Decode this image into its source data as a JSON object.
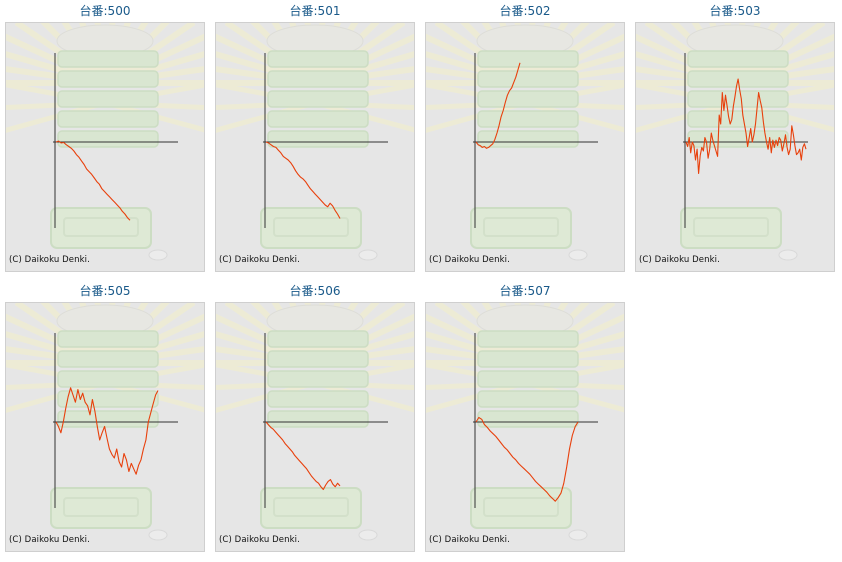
{
  "copyright": "(C) Daikoku Denki.",
  "colors": {
    "line": "#e8400c",
    "axis": "#333333",
    "title": "#1a5a8a",
    "panel": "#e6e6e6"
  },
  "chart_data": [
    {
      "type": "line",
      "title": "台番:500",
      "values": [
        0,
        1,
        -1,
        -0.5,
        -3,
        -5,
        -7,
        -10,
        -14,
        -17,
        -21,
        -25,
        -30,
        -33,
        -36,
        -40,
        -44,
        -47,
        -52,
        -55,
        -58,
        -61,
        -64,
        -67,
        -70,
        -73,
        -77,
        -80,
        -84,
        -87
      ]
    },
    {
      "type": "line",
      "title": "台番:501",
      "values": [
        0,
        -1,
        -3,
        -5,
        -6,
        -9,
        -12,
        -16,
        -18,
        -20,
        -23,
        -27,
        -32,
        -36,
        -39,
        -41,
        -44,
        -48,
        -52,
        -55,
        -58,
        -61,
        -64,
        -67,
        -70,
        -72,
        -68,
        -71,
        -76,
        -80,
        -85
      ]
    },
    {
      "type": "line",
      "title": "台番:502",
      "values": [
        0,
        -3,
        -4,
        -6,
        -5,
        -7,
        -6,
        -4,
        -2,
        3,
        10,
        18,
        28,
        35,
        44,
        52,
        57,
        60,
        66,
        72,
        80,
        88
      ]
    },
    {
      "type": "line",
      "title": "台番:503",
      "values": [
        0,
        -5,
        5,
        -12,
        0,
        -4,
        -20,
        -8,
        -35,
        -15,
        -6,
        -10,
        5,
        0,
        -18,
        -8,
        10,
        2,
        -4,
        -10,
        -16,
        30,
        20,
        55,
        35,
        52,
        40,
        28,
        20,
        25,
        40,
        50,
        62,
        70,
        58,
        48,
        30,
        20,
        10,
        -5,
        5,
        15,
        0,
        8,
        20,
        38,
        55,
        46,
        38,
        22,
        10,
        0,
        -8,
        5,
        -12,
        2,
        -6,
        2,
        -4,
        5,
        2,
        -10,
        -2,
        8,
        -6,
        -14,
        -8,
        18,
        8,
        -4,
        -14,
        -12,
        -8,
        -20,
        -6,
        -2,
        -8
      ]
    },
    {
      "type": "line",
      "title": "台番:505",
      "values": [
        0,
        -5,
        -12,
        0,
        15,
        28,
        38,
        30,
        22,
        36,
        25,
        32,
        22,
        18,
        8,
        25,
        12,
        -5,
        -20,
        -12,
        -5,
        -18,
        -30,
        -36,
        -40,
        -30,
        -44,
        -50,
        -35,
        -42,
        -55,
        -46,
        -52,
        -58,
        -48,
        -42,
        -30,
        -20,
        0,
        10,
        20,
        30,
        35
      ]
    },
    {
      "type": "line",
      "title": "台番:506",
      "values": [
        0,
        -3,
        -6,
        -8,
        -11,
        -14,
        -17,
        -20,
        -24,
        -27,
        -30,
        -33,
        -37,
        -40,
        -43,
        -46,
        -49,
        -52,
        -56,
        -60,
        -63,
        -66,
        -68,
        -72,
        -75,
        -70,
        -66,
        -64,
        -69,
        -72,
        -68,
        -71
      ]
    },
    {
      "type": "line",
      "title": "台番:507",
      "values": [
        0,
        5,
        3,
        -3,
        -6,
        -10,
        -13,
        -16,
        -20,
        -24,
        -28,
        -31,
        -35,
        -39,
        -42,
        -46,
        -49,
        -52,
        -55,
        -58,
        -62,
        -66,
        -69,
        -72,
        -75,
        -78,
        -82,
        -85,
        -88,
        -84,
        -79,
        -68,
        -50,
        -30,
        -15,
        -5,
        0
      ]
    }
  ]
}
